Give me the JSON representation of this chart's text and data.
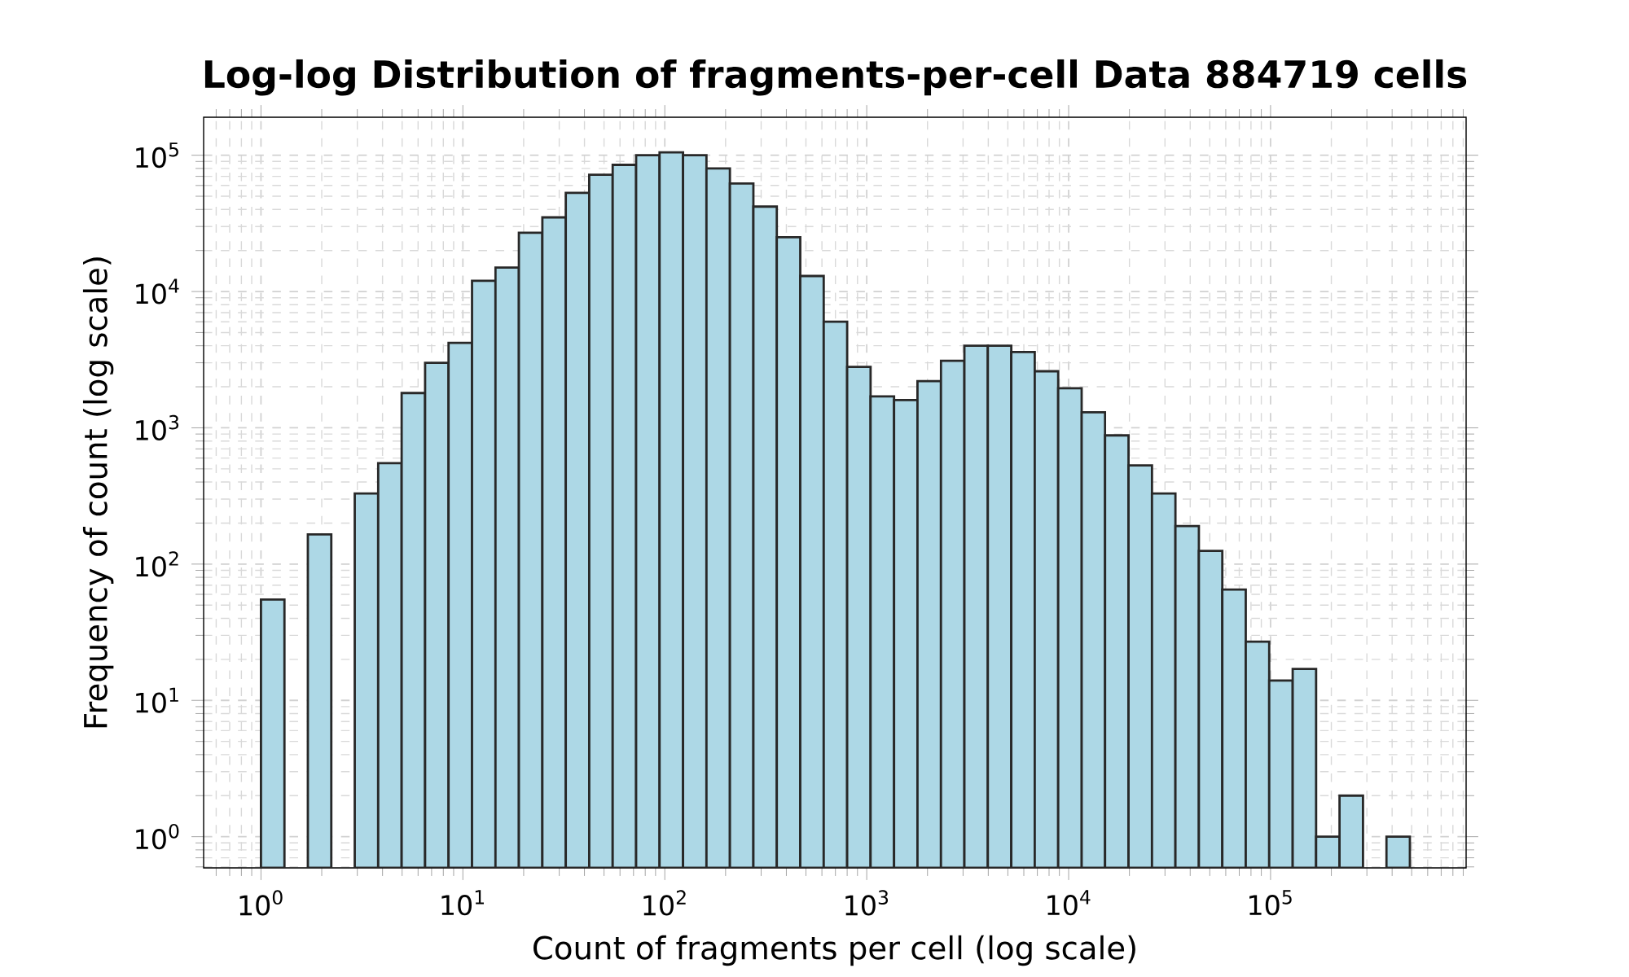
{
  "chart_data": {
    "type": "histogram",
    "title": "Log-log Distribution of fragments-per-cell Data 884719 cells",
    "xlabel": "Count of fragments per cell (log scale)",
    "ylabel": "Frequency of count (log scale)",
    "bins": [
      1,
      1.307,
      1.707,
      2.23,
      2.914,
      3.807,
      4.974,
      6.5,
      8.492,
      11.1,
      14.5,
      18.94,
      24.75,
      32.33,
      42.24,
      55.19,
      72.11,
      94.2,
      123.1,
      160.8,
      210.1,
      274.6,
      358.7,
      468.7,
      612.4,
      800.1,
      1045,
      1366,
      1784,
      2331,
      3046,
      3980,
      5200,
      6794,
      8877,
      11600,
      15150,
      19800,
      25870,
      33800,
      44160,
      57690,
      75380,
      98470,
      128700,
      168100,
      219600,
      287000,
      374900,
      489800
    ],
    "values": [
      55,
      null,
      165,
      null,
      330,
      550,
      1800,
      3000,
      4200,
      12000,
      15000,
      27000,
      35000,
      53000,
      72000,
      85000,
      100000,
      105000,
      100000,
      80000,
      62000,
      42000,
      25000,
      13000,
      6000,
      2800,
      1700,
      1600,
      2200,
      3100,
      4000,
      4000,
      3600,
      2600,
      1950,
      1300,
      880,
      530,
      330,
      190,
      125,
      65,
      27,
      14,
      17,
      1,
      2,
      null,
      1
    ],
    "color": "#add8e6",
    "log": "xy",
    "grid": true,
    "xlim": [
      0.52,
      930000
    ],
    "ylim": [
      0.59,
      190000
    ],
    "xticks": [
      {
        "value": 1,
        "label": "10$^{0}$"
      },
      {
        "value": 10,
        "label": "10$^{1}$"
      },
      {
        "value": 100,
        "label": "10$^{2}$"
      },
      {
        "value": 1000,
        "label": "10$^{3}$"
      },
      {
        "value": 10000,
        "label": "10$^{4}$"
      },
      {
        "value": 100000,
        "label": "10$^{5}$"
      }
    ],
    "yticks": [
      {
        "value": 1,
        "label": "10$^{0}$"
      },
      {
        "value": 10,
        "label": "10$^{1}$"
      },
      {
        "value": 100,
        "label": "10$^{2}$"
      },
      {
        "value": 1000,
        "label": "10$^{3}$"
      },
      {
        "value": 10000,
        "label": "10$^{4}$"
      },
      {
        "value": 100000,
        "label": "10$^{5}$"
      }
    ]
  }
}
